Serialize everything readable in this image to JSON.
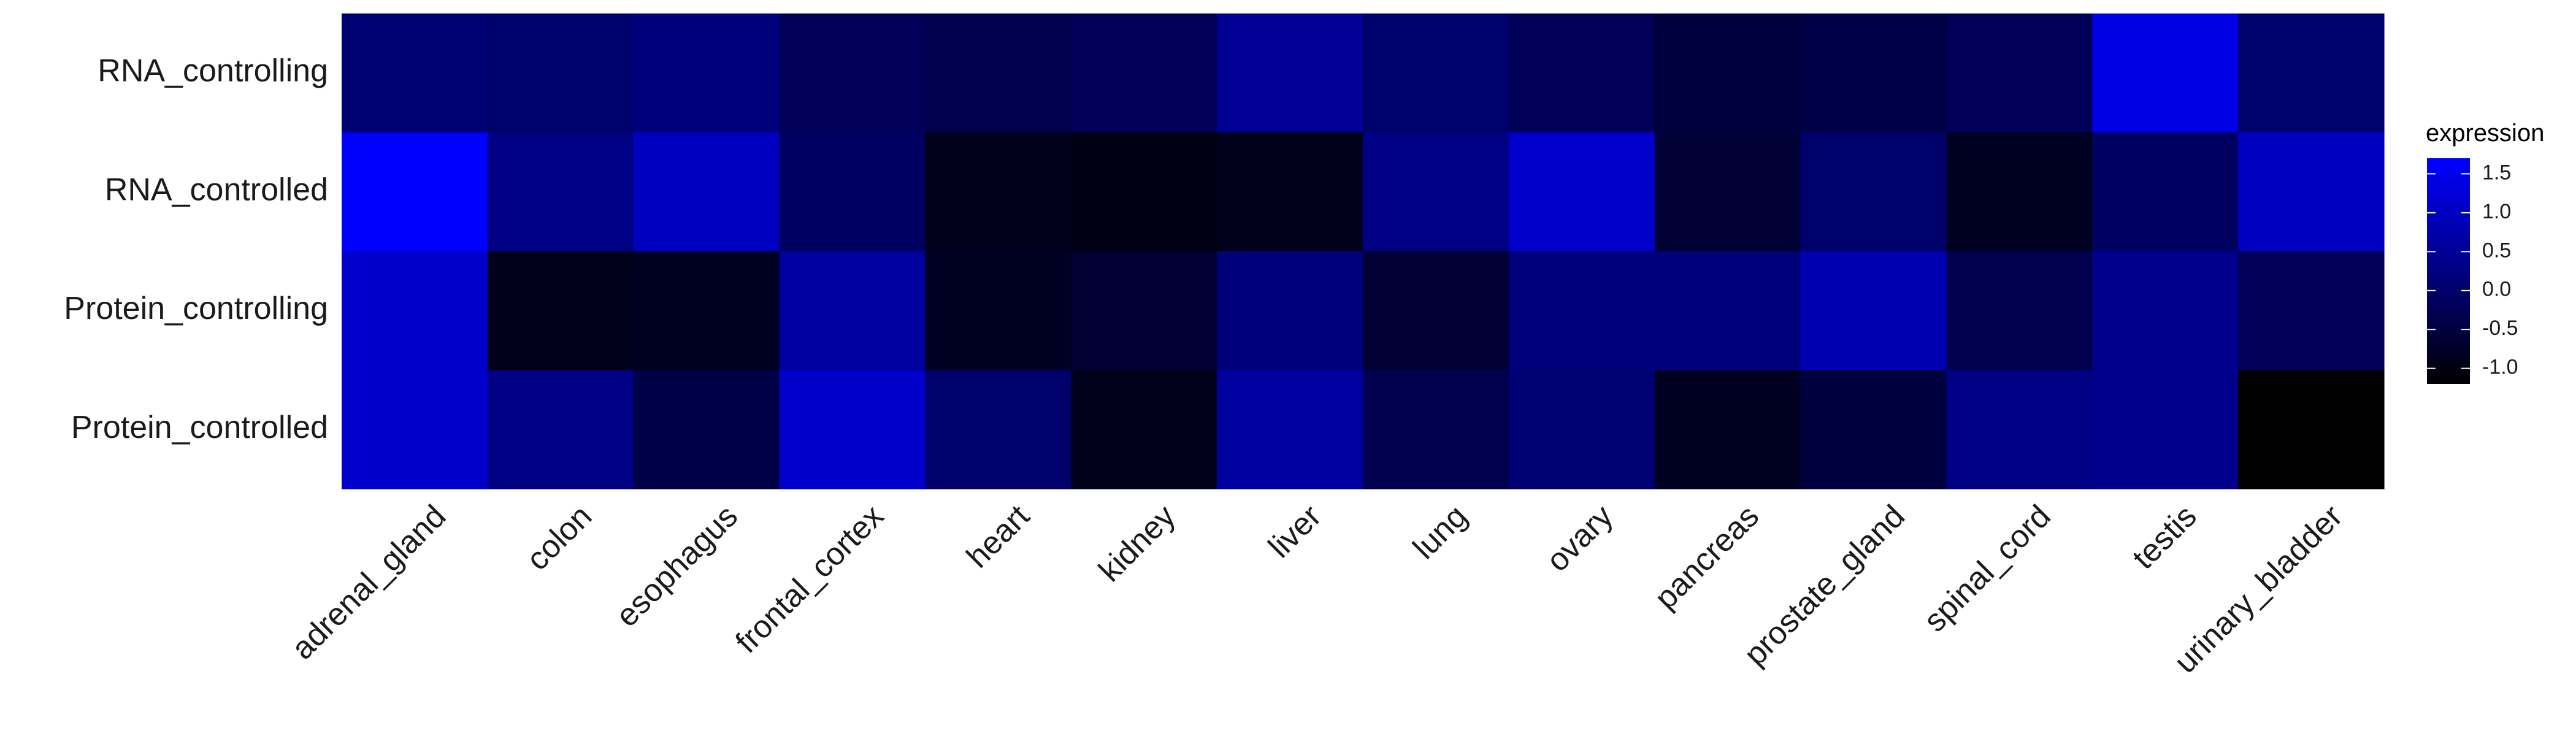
{
  "chart_data": {
    "type": "heatmap",
    "title": "",
    "xlabel": "",
    "ylabel": "",
    "x_categories": [
      "adrenal_gland",
      "colon",
      "esophagus",
      "frontal_cortex",
      "heart",
      "kidney",
      "liver",
      "lung",
      "ovary",
      "pancreas",
      "prostate_gland",
      "spinal_cord",
      "testis",
      "urinary_bladder"
    ],
    "y_categories": [
      "RNA_controlling",
      "RNA_controlled",
      "Protein_controlling",
      "Protein_controlled"
    ],
    "values": [
      [
        0.1,
        0.0,
        0.2,
        -0.2,
        -0.3,
        -0.2,
        0.5,
        0.0,
        -0.2,
        -0.5,
        -0.4,
        -0.2,
        1.4,
        0.0
      ],
      [
        1.7,
        0.3,
        1.0,
        -0.1,
        -0.9,
        -1.0,
        -0.9,
        0.3,
        1.1,
        -0.6,
        0.0,
        -0.8,
        -0.1,
        1.0
      ],
      [
        1.1,
        -0.9,
        -0.8,
        0.6,
        -0.8,
        -0.6,
        0.2,
        -0.6,
        0.2,
        0.2,
        0.8,
        -0.3,
        0.4,
        -0.2
      ],
      [
        1.1,
        0.3,
        -0.4,
        1.1,
        0.0,
        -0.9,
        0.6,
        -0.3,
        0.1,
        -0.8,
        -0.5,
        0.3,
        0.4,
        -1.2
      ]
    ],
    "colorscale": {
      "low": "#000000",
      "high": "#0000ff",
      "min": -1.2,
      "max": 1.7
    },
    "legend": {
      "title": "expression",
      "ticks": [
        1.5,
        1.0,
        0.5,
        0.0,
        -0.5,
        -1.0
      ],
      "tick_labels": [
        "1.5",
        "1.0",
        "0.5",
        "0.0",
        "-0.5",
        "-1.0"
      ],
      "position": "right"
    },
    "grid": false
  }
}
